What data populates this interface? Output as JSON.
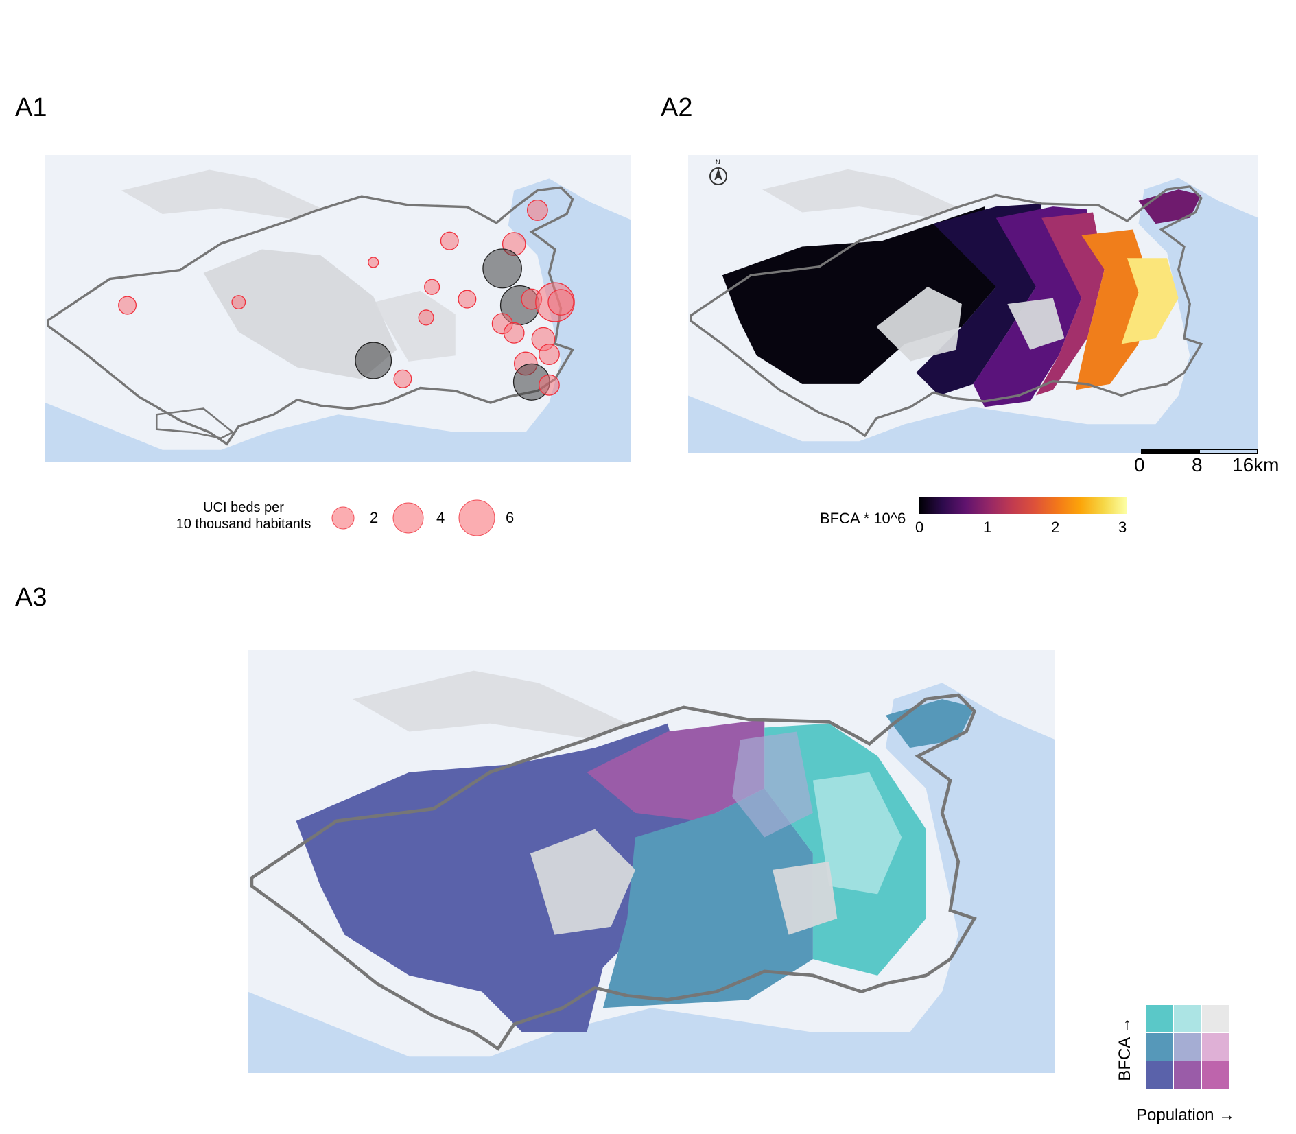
{
  "panels": {
    "a1": {
      "label": "A1"
    },
    "a2": {
      "label": "A2"
    },
    "a3": {
      "label": "A3"
    }
  },
  "legend_a1": {
    "title_line1": "UCI beds per",
    "title_line2": "10 thousand habitants",
    "sizes": [
      "2",
      "4",
      "6"
    ],
    "circle_color": "#f8767d"
  },
  "legend_a2": {
    "title": "BFCA * 10^6",
    "ticks": [
      "0",
      "1",
      "2",
      "3"
    ],
    "palette": [
      "#000004",
      "#420a68",
      "#932667",
      "#dd513a",
      "#fca50a",
      "#fcffa4"
    ]
  },
  "scale_bar": {
    "labels": [
      "0",
      "8",
      "16km"
    ]
  },
  "north_arrow": {
    "letter": "N"
  },
  "legend_a3": {
    "y_label": "BFCA →",
    "x_label": "Population →",
    "grid": [
      [
        "#5ac8c8",
        "#ace4e4",
        "#e8e8e8"
      ],
      [
        "#5698b9",
        "#a5add3",
        "#dfb0d6"
      ],
      [
        "#5a62aa",
        "#9a5ca8",
        "#be64ac"
      ]
    ]
  },
  "hospitals": [
    {
      "lon": 0.14,
      "lat": 0.49,
      "beds": 2.0,
      "type": "public"
    },
    {
      "lon": 0.33,
      "lat": 0.48,
      "beds": 1.2,
      "type": "public"
    },
    {
      "lon": 0.56,
      "lat": 0.35,
      "beds": 0.6,
      "type": "public"
    },
    {
      "lon": 0.66,
      "lat": 0.43,
      "beds": 1.5,
      "type": "public"
    },
    {
      "lon": 0.69,
      "lat": 0.28,
      "beds": 2.0,
      "type": "public"
    },
    {
      "lon": 0.72,
      "lat": 0.47,
      "beds": 2.0,
      "type": "public"
    },
    {
      "lon": 0.65,
      "lat": 0.53,
      "beds": 1.5,
      "type": "public"
    },
    {
      "lon": 0.84,
      "lat": 0.18,
      "beds": 2.5,
      "type": "public"
    },
    {
      "lon": 0.8,
      "lat": 0.29,
      "beds": 3.0,
      "type": "public"
    },
    {
      "lon": 0.78,
      "lat": 0.37,
      "beds": 6.0,
      "type": "private"
    },
    {
      "lon": 0.81,
      "lat": 0.49,
      "beds": 6.0,
      "type": "private"
    },
    {
      "lon": 0.83,
      "lat": 0.47,
      "beds": 2.5,
      "type": "public"
    },
    {
      "lon": 0.87,
      "lat": 0.48,
      "beds": 6.0,
      "type": "public"
    },
    {
      "lon": 0.88,
      "lat": 0.48,
      "beds": 3.5,
      "type": "public"
    },
    {
      "lon": 0.78,
      "lat": 0.55,
      "beds": 2.5,
      "type": "public"
    },
    {
      "lon": 0.8,
      "lat": 0.58,
      "beds": 2.5,
      "type": "public"
    },
    {
      "lon": 0.85,
      "lat": 0.6,
      "beds": 3.0,
      "type": "public"
    },
    {
      "lon": 0.86,
      "lat": 0.65,
      "beds": 2.5,
      "type": "public"
    },
    {
      "lon": 0.82,
      "lat": 0.68,
      "beds": 3.0,
      "type": "public"
    },
    {
      "lon": 0.83,
      "lat": 0.74,
      "beds": 5.5,
      "type": "private"
    },
    {
      "lon": 0.86,
      "lat": 0.75,
      "beds": 2.5,
      "type": "public"
    },
    {
      "lon": 0.56,
      "lat": 0.67,
      "beds": 5.5,
      "type": "private"
    },
    {
      "lon": 0.61,
      "lat": 0.73,
      "beds": 2.0,
      "type": "public"
    }
  ]
}
